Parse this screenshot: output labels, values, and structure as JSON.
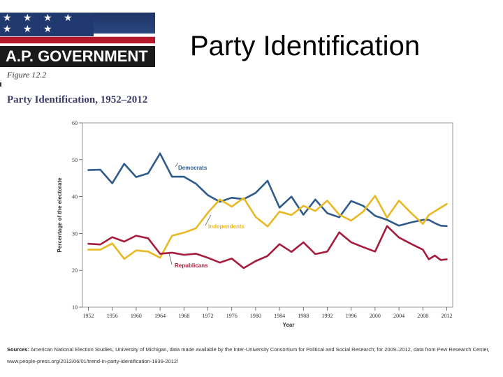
{
  "header": {
    "banner_text": "A.P. GOVERNMENT",
    "stars": "★ ★ ★ ★ ★ ★ ★",
    "slide_title": "Party Identification"
  },
  "figure": {
    "label": "Figure 12.2",
    "title": "Party Identification, 1952–2012"
  },
  "sources": {
    "label": "Sources:",
    "text": "American National Election Studies, University of Michigan, data made available by the Inter-University Consortium for Political and Social Research; for 2009–2012, data from Pew Research Center, www.people-press.org/2012/06/01/trend-in-party-identification-1939-2012/"
  },
  "chart_data": {
    "type": "line",
    "title": "Party Identification, 1952–2012",
    "xlabel": "Year",
    "ylabel": "Percentage of the electorate",
    "xlim": [
      1951,
      2013
    ],
    "ylim": [
      10,
      60
    ],
    "yticks": [
      10,
      20,
      30,
      40,
      50,
      60
    ],
    "xticks": [
      1952,
      1956,
      1960,
      1964,
      1968,
      1972,
      1976,
      1980,
      1984,
      1988,
      1992,
      1996,
      2000,
      2004,
      2008,
      2012
    ],
    "grid": false,
    "series": [
      {
        "name": "Democrats",
        "color": "#2f5b8c",
        "x": [
          1952,
          1954,
          1956,
          1958,
          1960,
          1962,
          1964,
          1966,
          1968,
          1970,
          1972,
          1974,
          1976,
          1978,
          1980,
          1982,
          1984,
          1986,
          1988,
          1990,
          1992,
          1994,
          1996,
          1998,
          2000,
          2002,
          2004,
          2006,
          2008,
          2009,
          2010,
          2011,
          2012
        ],
        "values": [
          47.2,
          47.3,
          43.6,
          48.9,
          45.3,
          46.3,
          51.7,
          45.4,
          45.4,
          43.5,
          40.4,
          38.6,
          39.7,
          39.3,
          41.0,
          44.3,
          37.0,
          40.0,
          35.1,
          39.2,
          35.5,
          34.4,
          38.8,
          37.5,
          34.8,
          33.7,
          32.1,
          33.0,
          33.7,
          33.7,
          32.8,
          32.1,
          32.0
        ]
      },
      {
        "name": "Independents",
        "color": "#e8b923",
        "x": [
          1952,
          1954,
          1956,
          1958,
          1960,
          1962,
          1964,
          1966,
          1968,
          1970,
          1972,
          1974,
          1976,
          1978,
          1980,
          1982,
          1984,
          1986,
          1988,
          1990,
          1992,
          1994,
          1996,
          1998,
          2000,
          2002,
          2004,
          2006,
          2008,
          2009,
          2010,
          2011,
          2012
        ],
        "values": [
          25.6,
          25.6,
          27.3,
          23.1,
          25.4,
          25.1,
          23.4,
          29.4,
          30.2,
          31.4,
          35.6,
          39.2,
          37.3,
          39.6,
          34.5,
          31.9,
          35.9,
          35.0,
          37.5,
          36.1,
          38.9,
          35.1,
          33.5,
          35.9,
          40.2,
          34.3,
          38.9,
          35.6,
          32.6,
          35.0,
          36.0,
          37.0,
          38.0
        ]
      },
      {
        "name": "Republicans",
        "color": "#a51c3c",
        "x": [
          1952,
          1954,
          1956,
          1958,
          1960,
          1962,
          1964,
          1966,
          1968,
          1970,
          1972,
          1974,
          1976,
          1978,
          1980,
          1982,
          1984,
          1986,
          1988,
          1990,
          1992,
          1994,
          1996,
          1998,
          2000,
          2002,
          2004,
          2006,
          2008,
          2009,
          2010,
          2011,
          2012
        ],
        "values": [
          27.2,
          27.0,
          29.0,
          27.8,
          29.4,
          28.7,
          24.5,
          24.8,
          24.2,
          24.5,
          23.4,
          22.1,
          23.2,
          20.6,
          22.5,
          23.9,
          27.1,
          25.0,
          27.6,
          24.4,
          25.1,
          30.3,
          27.6,
          26.3,
          25.1,
          32.0,
          28.9,
          27.2,
          25.6,
          23.0,
          24.0,
          22.8,
          23.0
        ]
      }
    ],
    "annotations": [
      "Democrats",
      "Independents",
      "Republicans"
    ]
  }
}
